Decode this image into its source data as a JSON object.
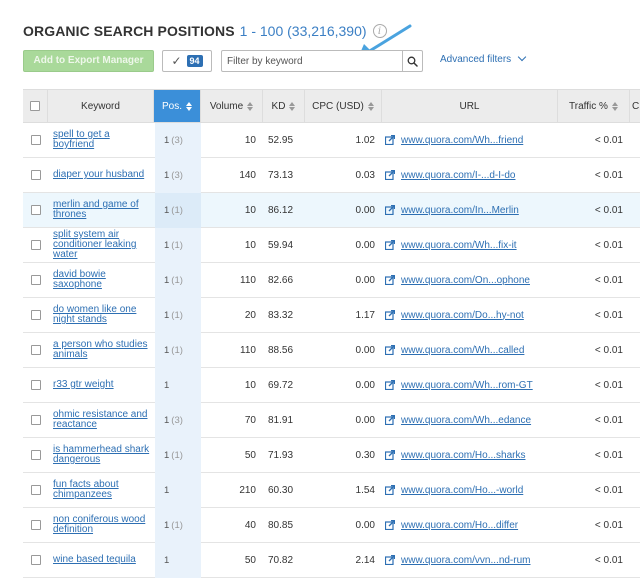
{
  "header": {
    "title": "ORGANIC SEARCH POSITIONS",
    "range": "1 - 100 (33,216,390)",
    "info_icon": "i"
  },
  "toolbar": {
    "export_label": "Add to Export Manager",
    "selected_count": "94",
    "filter_placeholder": "Filter by keyword",
    "advanced_filters_label": "Advanced filters"
  },
  "colors": {
    "accent": "#3b8fd9",
    "link": "#2d6fb3",
    "export_button": "#a9d99a",
    "arrow": "#4aa3df"
  },
  "columns": [
    "Keyword",
    "Pos.",
    "Volume",
    "KD",
    "CPC (USD)",
    "URL",
    "Traffic %",
    "C"
  ],
  "rows": [
    {
      "keyword": "spell to get a boyfriend",
      "pos": "1",
      "prev": "(3)",
      "volume": "10",
      "kd": "52.95",
      "cpc": "1.02",
      "url": "www.quora.com/Wh...friend",
      "traffic": "< 0.01"
    },
    {
      "keyword": "diaper your husband",
      "pos": "1",
      "prev": "(3)",
      "volume": "140",
      "kd": "73.13",
      "cpc": "0.03",
      "url": "www.quora.com/I-...d-I-do",
      "traffic": "< 0.01"
    },
    {
      "keyword": "merlin and game of thrones",
      "pos": "1",
      "prev": "(1)",
      "volume": "10",
      "kd": "86.12",
      "cpc": "0.00",
      "url": "www.quora.com/In...Merlin",
      "traffic": "< 0.01"
    },
    {
      "keyword": "split system air conditioner leaking water",
      "pos": "1",
      "prev": "(1)",
      "volume": "10",
      "kd": "59.94",
      "cpc": "0.00",
      "url": "www.quora.com/Wh...fix-it",
      "traffic": "< 0.01"
    },
    {
      "keyword": "david bowie saxophone",
      "pos": "1",
      "prev": "(1)",
      "volume": "110",
      "kd": "82.66",
      "cpc": "0.00",
      "url": "www.quora.com/On...ophone",
      "traffic": "< 0.01"
    },
    {
      "keyword": "do women like one night stands",
      "pos": "1",
      "prev": "(1)",
      "volume": "20",
      "kd": "83.32",
      "cpc": "1.17",
      "url": "www.quora.com/Do...hy-not",
      "traffic": "< 0.01"
    },
    {
      "keyword": "a person who studies animals",
      "pos": "1",
      "prev": "(1)",
      "volume": "110",
      "kd": "88.56",
      "cpc": "0.00",
      "url": "www.quora.com/Wh...called",
      "traffic": "< 0.01"
    },
    {
      "keyword": "r33 gtr weight",
      "pos": "1",
      "prev": "",
      "volume": "10",
      "kd": "69.72",
      "cpc": "0.00",
      "url": "www.quora.com/Wh...rom-GT",
      "traffic": "< 0.01"
    },
    {
      "keyword": "ohmic resistance and reactance",
      "pos": "1",
      "prev": "(3)",
      "volume": "70",
      "kd": "81.91",
      "cpc": "0.00",
      "url": "www.quora.com/Wh...edance",
      "traffic": "< 0.01"
    },
    {
      "keyword": "is hammerhead shark dangerous",
      "pos": "1",
      "prev": "(1)",
      "volume": "50",
      "kd": "71.93",
      "cpc": "0.30",
      "url": "www.quora.com/Ho...sharks",
      "traffic": "< 0.01"
    },
    {
      "keyword": "fun facts about chimpanzees",
      "pos": "1",
      "prev": "",
      "volume": "210",
      "kd": "60.30",
      "cpc": "1.54",
      "url": "www.quora.com/Ho...-world",
      "traffic": "< 0.01"
    },
    {
      "keyword": "non coniferous wood definition",
      "pos": "1",
      "prev": "(1)",
      "volume": "40",
      "kd": "80.85",
      "cpc": "0.00",
      "url": "www.quora.com/Ho...differ",
      "traffic": "< 0.01"
    },
    {
      "keyword": "wine based tequila",
      "pos": "1",
      "prev": "",
      "volume": "50",
      "kd": "70.82",
      "cpc": "2.14",
      "url": "www.quora.com/vvn...nd-rum",
      "traffic": "< 0.01"
    }
  ]
}
